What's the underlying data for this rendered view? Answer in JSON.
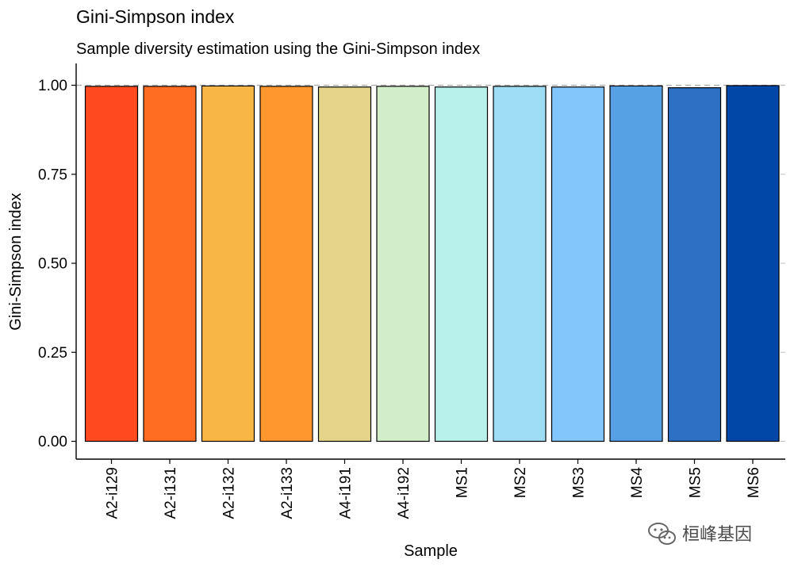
{
  "chart_data": {
    "type": "bar",
    "title": "Gini-Simpson index",
    "subtitle": "Sample diversity estimation using the Gini-Simpson index",
    "xlabel": "Sample",
    "ylabel": "Gini-Simpson index",
    "ylim": [
      0,
      1.05
    ],
    "yticks": [
      0,
      0.25,
      0.5,
      0.75,
      1
    ],
    "ytick_labels": [
      "0.00",
      "0.25",
      "0.50",
      "0.75",
      "1.00"
    ],
    "reference_line": 1,
    "grid": false,
    "legend": "none",
    "bar_outline_color": "#000000",
    "categories": [
      "A2-i129",
      "A2-i131",
      "A2-i132",
      "A2-i133",
      "A4-i191",
      "A4-i192",
      "MS1",
      "MS2",
      "MS3",
      "MS4",
      "MS5",
      "MS6"
    ],
    "values": [
      0.997,
      0.997,
      0.998,
      0.997,
      0.995,
      0.997,
      0.995,
      0.997,
      0.995,
      0.998,
      0.993,
      0.999
    ],
    "colors": [
      "#FF4A20",
      "#FF6D22",
      "#F8B744",
      "#FF962E",
      "#E6D588",
      "#D1EEC8",
      "#B8F0EC",
      "#9FDDF5",
      "#82C6FC",
      "#56A1E4",
      "#2D70C4",
      "#0047A8"
    ]
  },
  "watermark": {
    "text": "桓峰基因",
    "icon": "wechat-icon"
  }
}
